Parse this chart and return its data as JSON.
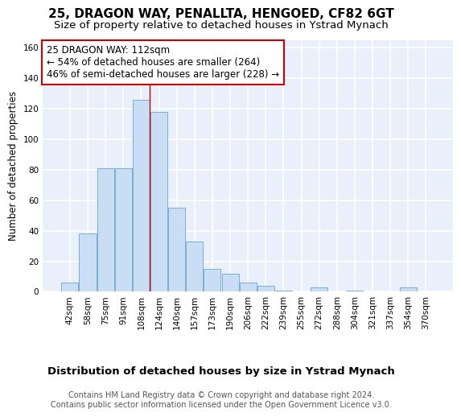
{
  "title": "25, DRAGON WAY, PENALLTA, HENGOED, CF82 6GT",
  "subtitle": "Size of property relative to detached houses in Ystrad Mynach",
  "xlabel": "Distribution of detached houses by size in Ystrad Mynach",
  "ylabel": "Number of detached properties",
  "categories": [
    "42sqm",
    "58sqm",
    "75sqm",
    "91sqm",
    "108sqm",
    "124sqm",
    "140sqm",
    "157sqm",
    "173sqm",
    "190sqm",
    "206sqm",
    "222sqm",
    "239sqm",
    "255sqm",
    "272sqm",
    "288sqm",
    "304sqm",
    "321sqm",
    "337sqm",
    "354sqm",
    "370sqm"
  ],
  "values": [
    6,
    38,
    81,
    81,
    126,
    118,
    55,
    33,
    15,
    12,
    6,
    4,
    1,
    0,
    3,
    0,
    1,
    0,
    0,
    3,
    0
  ],
  "bar_color": "#c9ddf5",
  "bar_edge_color": "#7aadd6",
  "background_color": "#eaf0fb",
  "grid_color": "#ffffff",
  "vline_x_index": 4.5,
  "vline_color": "#cc0000",
  "annotation_text": "25 DRAGON WAY: 112sqm\n← 54% of detached houses are smaller (264)\n46% of semi-detached houses are larger (228) →",
  "annotation_box_color": "white",
  "annotation_box_edge": "#cc0000",
  "ylim": [
    0,
    165
  ],
  "yticks": [
    0,
    20,
    40,
    60,
    80,
    100,
    120,
    140,
    160
  ],
  "footer": "Contains HM Land Registry data © Crown copyright and database right 2024.\nContains public sector information licensed under the Open Government Licence v3.0.",
  "title_fontsize": 11,
  "subtitle_fontsize": 9.5,
  "xlabel_fontsize": 9.5,
  "ylabel_fontsize": 8.5,
  "tick_fontsize": 7.5,
  "annotation_fontsize": 8.5,
  "footer_fontsize": 7
}
